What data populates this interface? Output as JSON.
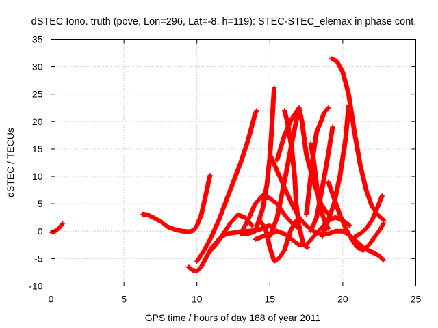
{
  "chart_data": {
    "type": "scatter",
    "title": "dSTEC Iono. truth (pove, Lon=296, Lat=-8, h=119): STEC-STEC_elemax in phase cont.",
    "xlabel": "GPS time / hours of day 188 of year 2011",
    "ylabel": "dSTEC  / TECUs",
    "xlim": [
      0,
      25
    ],
    "ylim": [
      -10,
      35
    ],
    "xticks": [
      0,
      5,
      10,
      15,
      20,
      25
    ],
    "yticks": [
      -10,
      -5,
      0,
      5,
      10,
      15,
      20,
      25,
      30,
      35
    ],
    "grid": true,
    "marker": "plus",
    "color": "#ff0000",
    "series": [
      {
        "x": [
          0.0,
          0.2,
          0.4,
          0.6,
          0.8
        ],
        "y": [
          -0.2,
          -0.1,
          0.2,
          0.7,
          1.4
        ]
      },
      {
        "x": [
          6.3,
          6.6,
          7.0,
          7.5,
          8.0,
          8.5,
          9.0,
          9.5,
          9.8,
          10.0,
          10.3,
          10.6,
          10.9
        ],
        "y": [
          3.1,
          3.0,
          2.5,
          1.8,
          0.8,
          0.3,
          0.0,
          -0.1,
          0.2,
          1.0,
          3.0,
          6.5,
          10.2
        ]
      },
      {
        "x": [
          9.4,
          9.7,
          10.0,
          10.3,
          10.6,
          11.0,
          11.5,
          12.0,
          12.5,
          13.0,
          13.5,
          14.0,
          14.3,
          14.7,
          15.0,
          15.3
        ],
        "y": [
          -6.5,
          -7.1,
          -7.3,
          -6.5,
          -5.0,
          -3.0,
          -1.5,
          -0.5,
          -0.3,
          -0.1,
          0.0,
          0.1,
          0.3,
          0.8,
          1.0,
          0.5
        ]
      },
      {
        "x": [
          10.0,
          10.5,
          11.0,
          11.5,
          12.0,
          12.5,
          13.0,
          13.5,
          13.8,
          14.0,
          14.1
        ],
        "y": [
          -5.5,
          -3.5,
          -1.0,
          2.0,
          5.5,
          9.0,
          12.5,
          16.5,
          19.5,
          21.5,
          22.0
        ]
      },
      {
        "x": [
          10.8,
          11.3,
          11.8,
          12.3,
          12.8,
          13.3,
          13.8
        ],
        "y": [
          -4.0,
          -2.5,
          -0.5,
          1.5,
          3.0,
          2.5,
          1.0
        ]
      },
      {
        "x": [
          13.0,
          13.5,
          14.0,
          14.5,
          14.8,
          15.0,
          15.1,
          15.2,
          15.3
        ],
        "y": [
          -0.5,
          -0.5,
          0.0,
          4.0,
          8.5,
          13.5,
          17.5,
          22.0,
          26.2
        ]
      },
      {
        "x": [
          13.0,
          13.5,
          14.0,
          14.5,
          15.0,
          15.5,
          16.0,
          16.5,
          17.0
        ],
        "y": [
          -0.5,
          2.0,
          5.0,
          6.5,
          6.0,
          5.0,
          3.0,
          1.5,
          0.5
        ]
      },
      {
        "x": [
          14.3,
          14.7,
          15.0,
          15.3,
          15.6,
          16.0,
          16.4,
          16.8
        ],
        "y": [
          2.0,
          0.5,
          -3.0,
          -5.5,
          -5.0,
          -3.5,
          0.0,
          2.0
        ]
      },
      {
        "x": [
          15.0,
          15.5,
          16.0,
          16.5,
          17.0,
          17.5,
          18.0,
          18.5,
          19.0,
          19.5,
          20.0,
          20.5,
          21.0,
          21.5,
          22.0,
          22.5,
          22.8
        ],
        "y": [
          14.0,
          11.0,
          8.0,
          5.0,
          2.5,
          1.0,
          0.0,
          -0.5,
          -0.5,
          0.0,
          0.0,
          -0.8,
          -2.0,
          -3.2,
          -3.8,
          -4.5,
          -5.3
        ]
      },
      {
        "x": [
          14.0,
          14.5,
          15.0,
          15.5,
          16.0,
          16.5,
          17.0,
          17.5,
          18.0,
          18.5,
          19.0,
          19.5,
          20.0,
          20.5
        ],
        "y": [
          -1.5,
          -1.0,
          -0.5,
          0.0,
          -0.5,
          -1.5,
          -2.5,
          -2.5,
          -1.0,
          0.5,
          2.0,
          2.5,
          2.0,
          1.0
        ]
      },
      {
        "x": [
          15.0,
          15.5,
          16.0,
          16.5,
          16.8,
          17.0
        ],
        "y": [
          -1.0,
          2.5,
          9.0,
          16.0,
          20.0,
          22.5
        ]
      },
      {
        "x": [
          15.5,
          16.0,
          16.5,
          17.0,
          17.2,
          17.5,
          18.0,
          18.5,
          19.0
        ],
        "y": [
          13.0,
          17.5,
          20.5,
          22.5,
          20.0,
          14.0,
          9.0,
          5.0,
          3.0
        ]
      },
      {
        "x": [
          16.0,
          16.2,
          16.5,
          16.7,
          16.8,
          17.0,
          17.3,
          17.6
        ],
        "y": [
          22.0,
          20.0,
          15.0,
          10.0,
          5.0,
          1.0,
          -2.5,
          -3.0
        ]
      },
      {
        "x": [
          17.5,
          17.8,
          18.0,
          18.2,
          18.5,
          18.7,
          19.0
        ],
        "y": [
          3.0,
          10.0,
          14.5,
          18.0,
          20.0,
          21.5,
          22.5
        ]
      },
      {
        "x": [
          17.8,
          18.0,
          18.2,
          18.4,
          18.6,
          18.8,
          19.0
        ],
        "y": [
          16.0,
          13.0,
          8.5,
          5.0,
          3.0,
          1.5,
          0.5
        ]
      },
      {
        "x": [
          17.8,
          18.2,
          18.6,
          19.0,
          19.3
        ],
        "y": [
          0.0,
          2.5,
          8.0,
          14.0,
          19.0
        ]
      },
      {
        "x": [
          18.6,
          19.0,
          19.4,
          19.8,
          20.2,
          20.4
        ],
        "y": [
          -1.0,
          2.0,
          5.0,
          10.0,
          17.0,
          23.0
        ]
      },
      {
        "x": [
          19.2,
          19.6,
          20.0,
          20.4,
          20.8,
          21.2,
          21.6,
          22.0,
          22.4,
          22.8
        ],
        "y": [
          31.5,
          31.0,
          29.0,
          25.0,
          18.0,
          12.0,
          7.5,
          4.5,
          3.0,
          2.0
        ]
      },
      {
        "x": [
          19.0,
          19.4,
          19.8,
          20.2,
          20.6,
          21.0,
          21.4,
          21.8,
          22.2,
          22.6,
          22.8
        ],
        "y": [
          9.0,
          6.0,
          3.0,
          0.5,
          -1.5,
          -3.0,
          -3.5,
          -2.5,
          -1.0,
          0.5,
          1.5
        ]
      },
      {
        "x": [
          20.8,
          21.2,
          21.6,
          22.0,
          22.4,
          22.7
        ],
        "y": [
          -1.0,
          -0.5,
          0.5,
          2.0,
          4.5,
          6.5
        ]
      }
    ]
  }
}
